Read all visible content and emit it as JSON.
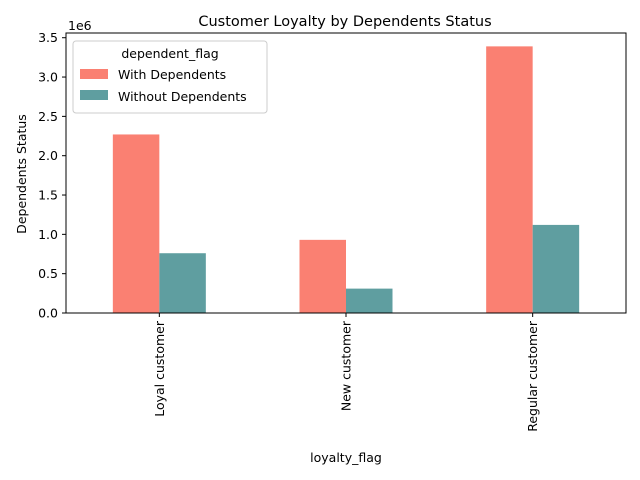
{
  "chart_data": {
    "type": "bar",
    "title": "Customer Loyalty by Dependents Status",
    "xlabel": "loyalty_flag",
    "ylabel": "Dependents Status",
    "y_scale_label": "1e6",
    "categories": [
      "Loyal customer",
      "New customer",
      "Regular customer"
    ],
    "series": [
      {
        "name": "With Dependents",
        "color": "#fa8072",
        "values": [
          2270000,
          930000,
          3390000
        ]
      },
      {
        "name": "Without Dependents",
        "color": "#5f9ea0",
        "values": [
          760000,
          310000,
          1120000
        ]
      }
    ],
    "ylim": [
      0,
      3560000
    ],
    "yticks": [
      0,
      500000,
      1000000,
      1500000,
      2000000,
      2500000,
      3000000,
      3500000
    ],
    "ytick_labels": [
      "0.0",
      "0.5",
      "1.0",
      "1.5",
      "2.0",
      "2.5",
      "3.0",
      "3.5"
    ],
    "legend": {
      "title": "dependent_flag",
      "placement": "top-left"
    },
    "grid": false
  }
}
